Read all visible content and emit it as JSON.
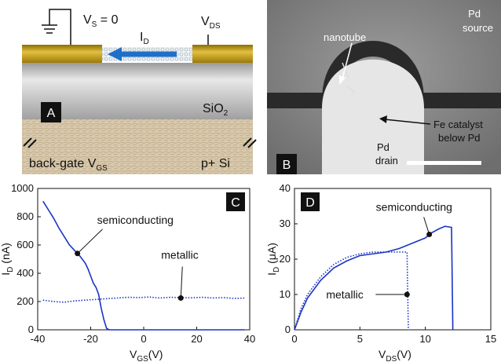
{
  "panel_a": {
    "label": "A",
    "vs": [
      "V",
      "S",
      " = 0"
    ],
    "vds": [
      "V",
      "DS"
    ],
    "id": [
      "I",
      "D"
    ],
    "oxide": [
      "SiO",
      "2"
    ],
    "gate": [
      "back-gate V",
      "GS"
    ],
    "substrate": "p+ Si"
  },
  "panel_b": {
    "label": "B",
    "source": [
      "Pd",
      "source"
    ],
    "nanotube": "nanotube",
    "catalyst": [
      "Fe catalyst",
      "below Pd"
    ],
    "drain": [
      "Pd",
      "drain"
    ]
  },
  "chart_data": [
    {
      "type": "line",
      "label": "C",
      "xlabel": [
        "V",
        "GS",
        "(V)"
      ],
      "ylabel": [
        "I",
        "D",
        " (nA)"
      ],
      "xlim": [
        -40,
        40
      ],
      "ylim": [
        0,
        1000
      ],
      "xticks": [
        -40,
        -20,
        0,
        20,
        40
      ],
      "yticks": [
        0,
        200,
        400,
        600,
        800,
        1000
      ],
      "series": [
        {
          "color": "#1a33c4",
          "style": "solid",
          "x": [
            -38,
            -36,
            -34,
            -32,
            -30,
            -28,
            -26,
            -24,
            -22,
            -21,
            -20,
            -19,
            -18,
            -17,
            -16,
            -15,
            -14,
            -13,
            0,
            20,
            38
          ],
          "values": [
            910,
            850,
            790,
            720,
            660,
            600,
            560,
            520,
            470,
            430,
            380,
            330,
            300,
            250,
            150,
            70,
            10,
            0,
            0,
            0,
            0
          ]
        },
        {
          "color": "#1a33c4",
          "style": "dotted",
          "x": [
            -38,
            -34,
            -30,
            -26,
            -22,
            -18,
            -14,
            -10,
            -6,
            -2,
            2,
            6,
            10,
            14,
            18,
            22,
            26,
            30,
            34,
            38
          ],
          "values": [
            210,
            200,
            195,
            205,
            210,
            215,
            220,
            225,
            230,
            228,
            232,
            225,
            230,
            228,
            226,
            230,
            225,
            228,
            222,
            225
          ]
        }
      ],
      "annotations": [
        {
          "text": "semiconducting",
          "x": -25,
          "y": 540
        },
        {
          "text": "metallic",
          "x": 14,
          "y": 225
        }
      ]
    },
    {
      "type": "line",
      "label": "D",
      "xlabel": [
        "V",
        "DS",
        "(V)"
      ],
      "ylabel": [
        "I",
        "D",
        " (μA)"
      ],
      "xlim": [
        0,
        15
      ],
      "ylim": [
        0,
        40
      ],
      "xticks": [
        0,
        5,
        10,
        15
      ],
      "yticks": [
        0,
        10,
        20,
        30,
        40
      ],
      "series": [
        {
          "color": "#1a33c4",
          "style": "solid",
          "x": [
            0,
            0.5,
            1,
            2,
            3,
            4,
            5,
            6,
            7,
            8,
            9,
            10,
            10.5,
            11,
            11.5,
            12,
            12.1
          ],
          "values": [
            0,
            5,
            9,
            14,
            17.5,
            19.5,
            21,
            21.5,
            22,
            23,
            24.5,
            26,
            27.5,
            28.5,
            29.3,
            29,
            0
          ]
        },
        {
          "color": "#1a33c4",
          "style": "dotted",
          "x": [
            0,
            0.5,
            1,
            2,
            3,
            4,
            5,
            6,
            7,
            8,
            8.6,
            8.7
          ],
          "values": [
            0,
            6,
            10,
            15,
            18.5,
            20.5,
            21.5,
            22,
            22,
            22,
            22,
            0
          ]
        }
      ],
      "annotations": [
        {
          "text": "semiconducting",
          "x": 10.3,
          "y": 27
        },
        {
          "text": "metallic",
          "x": 8.6,
          "y": 10
        }
      ]
    }
  ]
}
